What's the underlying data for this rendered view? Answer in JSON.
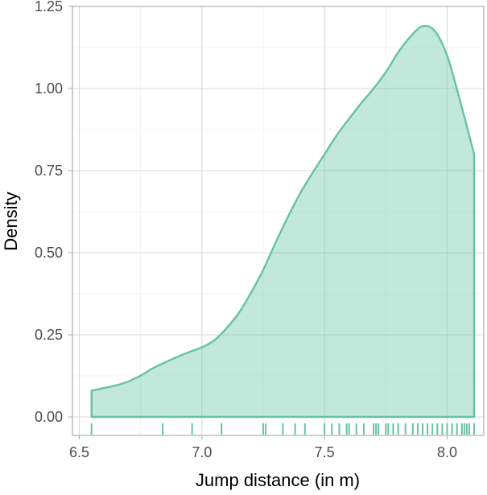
{
  "chart_data": {
    "type": "area",
    "title": "",
    "xlabel": "Jump distance (in m)",
    "ylabel": "Density",
    "xlim": [
      6.5,
      8.15
    ],
    "ylim": [
      0,
      1.25
    ],
    "x_ticks": [
      6.5,
      7.0,
      7.5,
      8.0
    ],
    "x_tick_labels": [
      "6.5",
      "7.0",
      "7.5",
      "8.0"
    ],
    "y_ticks": [
      0,
      0.25,
      0.5,
      0.75,
      1.0,
      1.25
    ],
    "y_tick_labels": [
      "0.00",
      "0.25",
      "0.50",
      "0.75",
      "1.00",
      "1.25"
    ],
    "grid": true,
    "legend": "none",
    "colors": {
      "line": "#66c2a5",
      "fill": "#66c2a5",
      "fill_opacity": 0.4,
      "rug": "#66c2a5"
    },
    "density": {
      "x": [
        6.55,
        6.6,
        6.65,
        6.7,
        6.75,
        6.8,
        6.85,
        6.9,
        6.95,
        7.0,
        7.05,
        7.1,
        7.15,
        7.2,
        7.25,
        7.3,
        7.35,
        7.4,
        7.45,
        7.5,
        7.55,
        7.6,
        7.65,
        7.7,
        7.75,
        7.8,
        7.85,
        7.9,
        7.95,
        8.0,
        8.05,
        8.11
      ],
      "y": [
        0.08,
        0.088,
        0.096,
        0.108,
        0.126,
        0.148,
        0.166,
        0.183,
        0.198,
        0.212,
        0.233,
        0.27,
        0.316,
        0.378,
        0.448,
        0.53,
        0.608,
        0.68,
        0.742,
        0.8,
        0.858,
        0.908,
        0.956,
        1.0,
        1.05,
        1.11,
        1.158,
        1.19,
        1.175,
        1.1,
        0.97,
        0.8
      ]
    },
    "rug": [
      6.55,
      6.84,
      6.96,
      7.08,
      7.25,
      7.26,
      7.33,
      7.38,
      7.42,
      7.5,
      7.53,
      7.56,
      7.59,
      7.6,
      7.63,
      7.66,
      7.7,
      7.71,
      7.72,
      7.75,
      7.76,
      7.78,
      7.8,
      7.83,
      7.86,
      7.88,
      7.9,
      7.92,
      7.94,
      7.96,
      7.98,
      8.0,
      8.02,
      8.04,
      8.06,
      8.07,
      8.08,
      8.09,
      8.11
    ]
  }
}
